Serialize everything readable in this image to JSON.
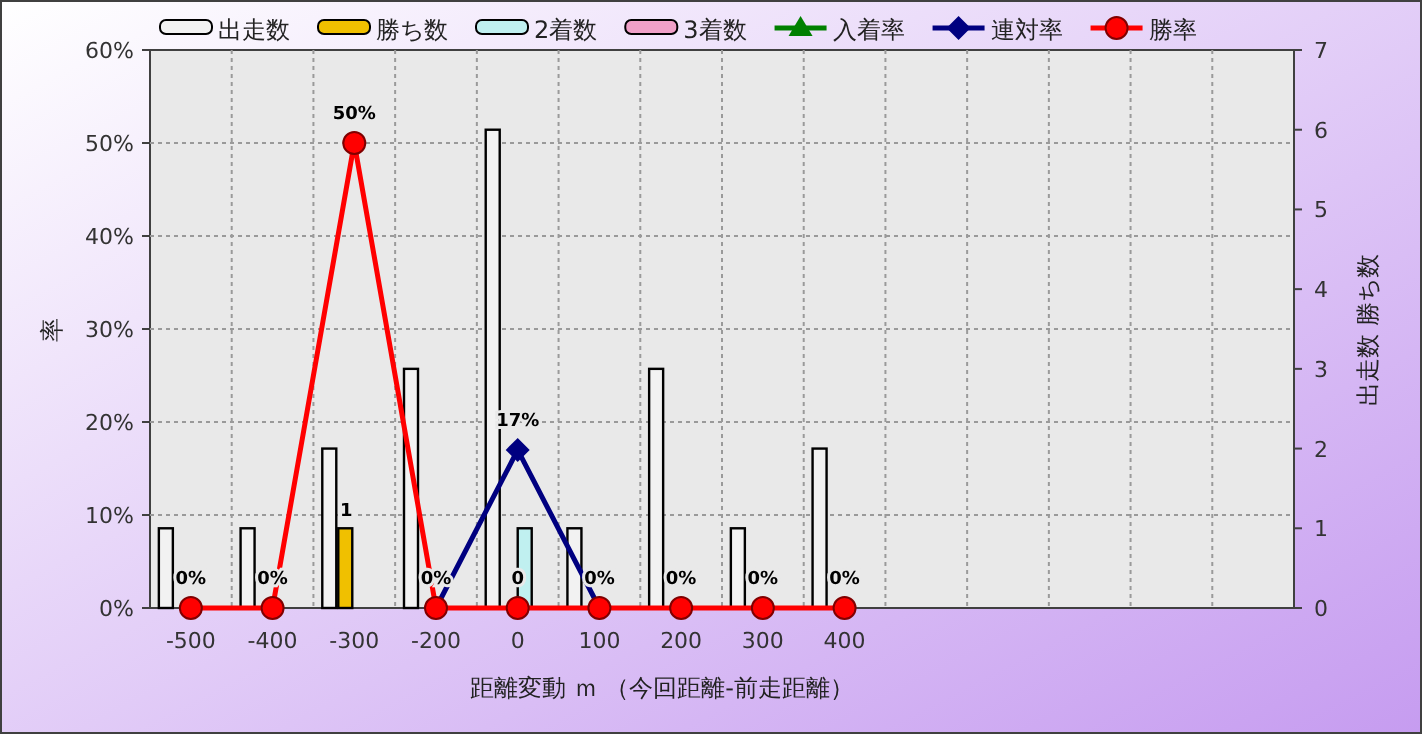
{
  "chart_data": {
    "type": "bar",
    "categories": [
      "-500",
      "-400",
      "-300",
      "-200",
      "0",
      "100",
      "200",
      "300",
      "400",
      null,
      null,
      null,
      null,
      null
    ],
    "xlabel": "距離変動 ｍ （今回距離-前走距離）",
    "ylabel": "率",
    "y2label": "出走数 勝ち数",
    "ylim": [
      0,
      60
    ],
    "yticks": [
      {
        "value": 0,
        "label": "0%"
      },
      {
        "value": 10,
        "label": "10%"
      },
      {
        "value": 20,
        "label": "20%"
      },
      {
        "value": 30,
        "label": "30%"
      },
      {
        "value": 40,
        "label": "40%"
      },
      {
        "value": 50,
        "label": "50%"
      },
      {
        "value": 60,
        "label": "60%"
      }
    ],
    "y2lim": [
      0,
      7
    ],
    "y2ticks": [
      0,
      1,
      2,
      3,
      4,
      5,
      6,
      7
    ],
    "grid": true,
    "legend": "top",
    "series": [
      {
        "name": "出走数",
        "axis": "y2",
        "color": "#f2f2f2",
        "values": [
          1,
          1,
          2,
          3,
          6,
          1,
          3,
          1,
          2,
          null,
          null,
          null,
          null,
          null
        ]
      },
      {
        "name": "勝ち数",
        "axis": "y2",
        "color": "#f0c000",
        "values": [
          0,
          0,
          1,
          0,
          0,
          0,
          0,
          0,
          0,
          null,
          null,
          null,
          null,
          null
        ],
        "value_labels": [
          null,
          null,
          "1",
          null,
          null,
          null,
          null,
          null,
          null,
          null,
          null,
          null,
          null,
          null
        ]
      },
      {
        "name": "2着数",
        "axis": "y2",
        "color": "#c0f0f0",
        "values": [
          0,
          0,
          0,
          0,
          1,
          0,
          0,
          0,
          0,
          null,
          null,
          null,
          null,
          null
        ]
      },
      {
        "name": "3着数",
        "axis": "y2",
        "color": "#f0a0c8",
        "values": [
          0,
          0,
          0,
          0,
          0,
          0,
          0,
          0,
          0,
          null,
          null,
          null,
          null,
          null
        ]
      },
      {
        "name": "入着率",
        "type": "line",
        "color": "#008000",
        "marker": "triangle",
        "values": [
          null,
          null,
          null,
          null,
          null,
          null,
          null,
          null,
          null,
          null,
          null,
          null,
          null,
          null
        ]
      },
      {
        "name": "連対率",
        "type": "line",
        "color": "#000080",
        "marker": "diamond",
        "values": [
          null,
          null,
          null,
          0,
          17,
          0,
          null,
          null,
          null,
          null,
          null,
          null,
          null,
          null
        ],
        "value_labels": [
          null,
          null,
          null,
          null,
          "17%",
          null,
          null,
          null,
          null,
          null,
          null,
          null,
          null,
          null
        ]
      },
      {
        "name": "勝率",
        "type": "line",
        "color": "#ff0000",
        "marker": "circle",
        "values": [
          0,
          0,
          50,
          0,
          0,
          0,
          0,
          0,
          0,
          null,
          null,
          null,
          null,
          null
        ],
        "value_labels": [
          "0%",
          "0%",
          "50%",
          "0%",
          "0",
          "0%",
          "0%",
          "0%",
          "0%",
          null,
          null,
          null,
          null,
          null
        ]
      }
    ]
  }
}
